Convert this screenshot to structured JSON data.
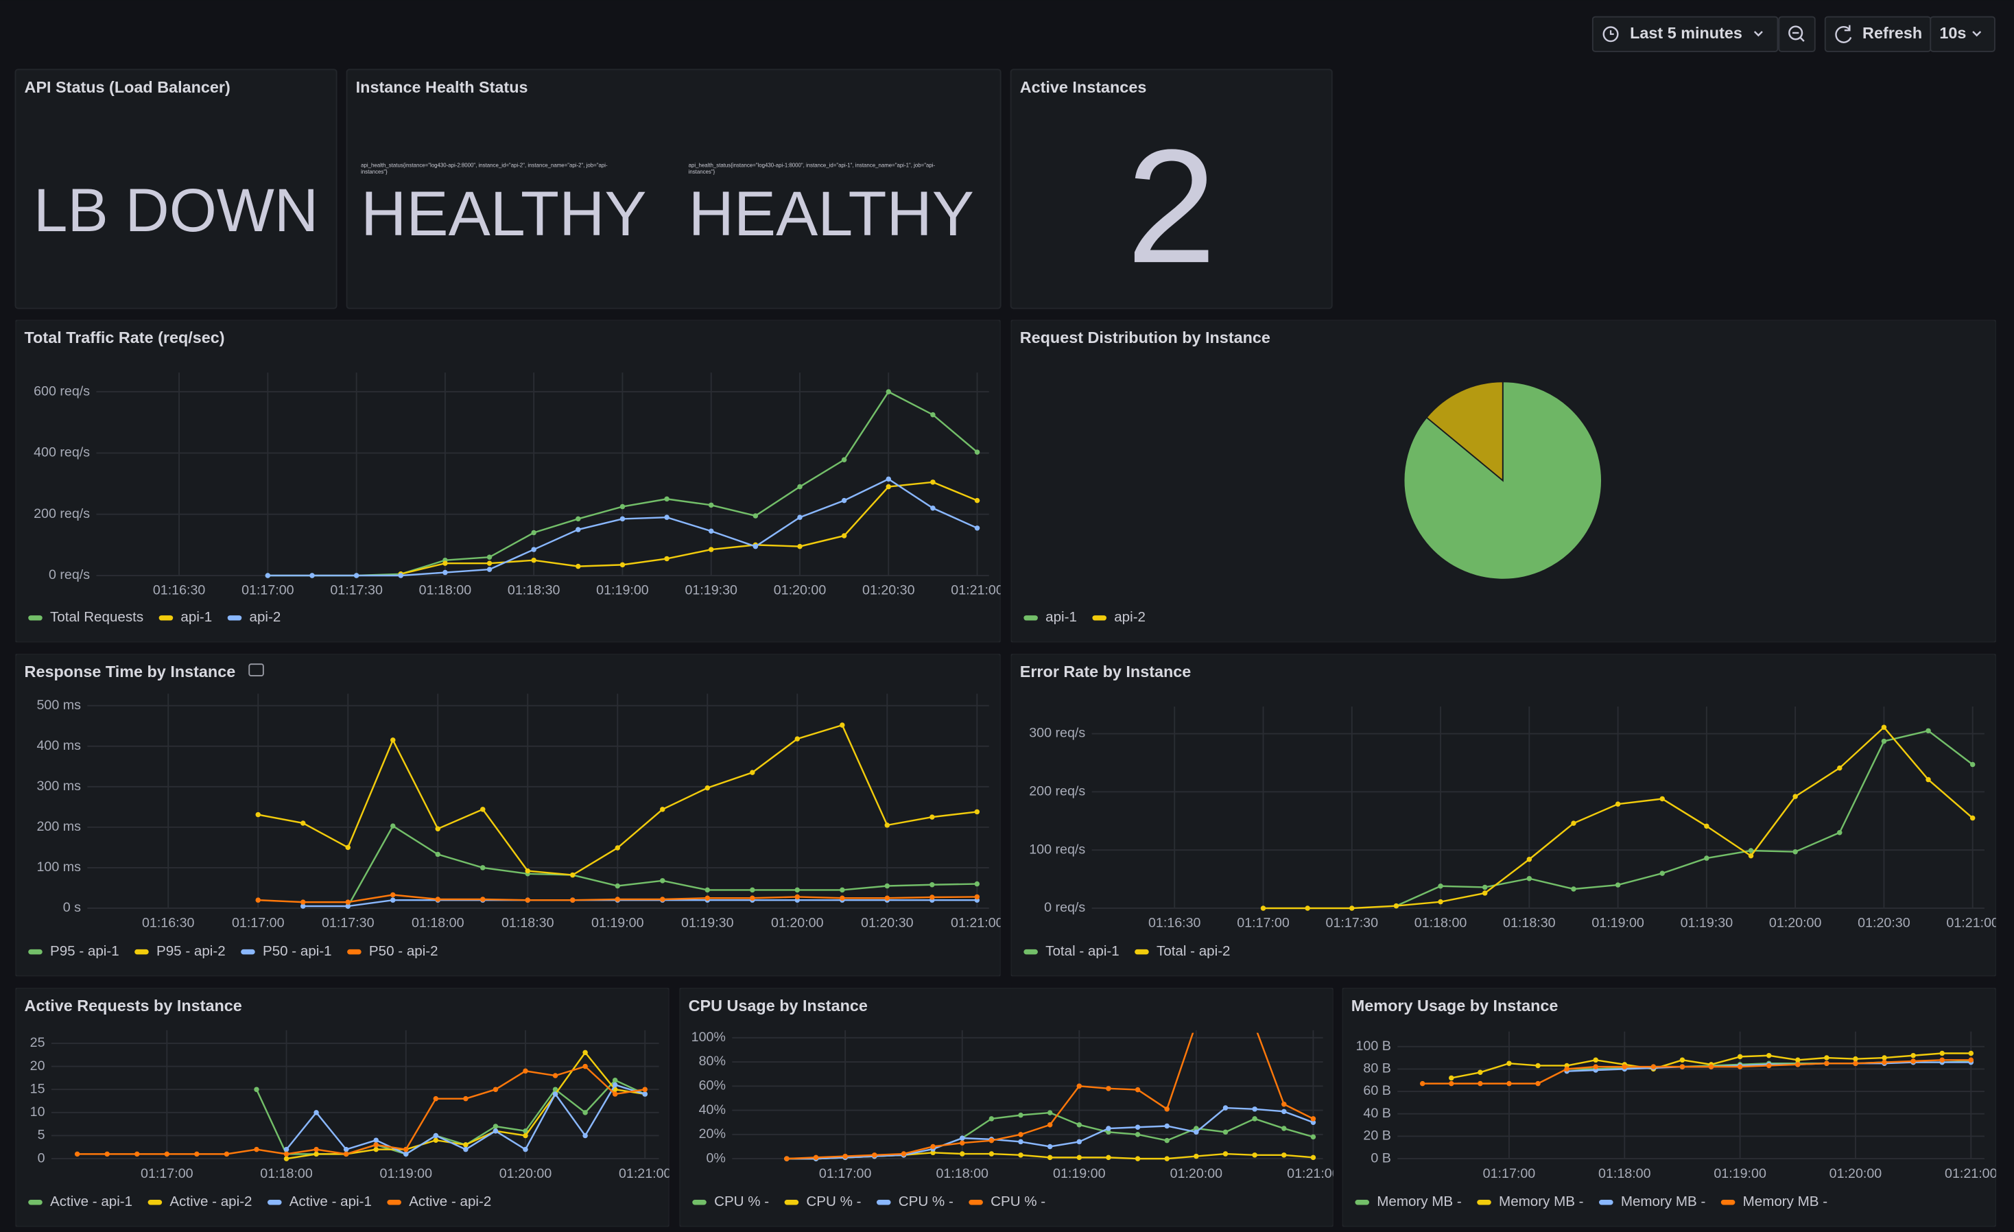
{
  "toolbar": {
    "time_range": "Last 5 minutes",
    "refresh": "Refresh",
    "interval": "10s"
  },
  "status_panel": {
    "title": "API Status (Load Balancer)",
    "value": "LB DOWN",
    "color": "#e0575f"
  },
  "health_panel": {
    "title": "Instance Health Status",
    "color": "#73bf69",
    "items": [
      {
        "label_lines": [
          "api_health_status{instance=\"log430-api-2:8000\", instance_id=\"api-2\", instance_name=\"api-2\", job=\"api-",
          "instances\"}"
        ],
        "value": "HEALTHY"
      },
      {
        "label_lines": [
          "api_health_status{instance=\"log430-api-1:8000\", instance_id=\"api-1\", instance_name=\"api-1\", job=\"api-",
          "instances\"}"
        ],
        "value": "HEALTHY"
      }
    ]
  },
  "instances_panel": {
    "title": "Active Instances",
    "value": 2,
    "color": "#73bf69"
  },
  "chart_data": [
    {
      "type": "line",
      "title": "Total Traffic Rate (req/sec)",
      "x": [
        "01:17:00",
        "01:17:15",
        "01:17:30",
        "01:17:45",
        "01:18:00",
        "01:18:15",
        "01:18:30",
        "01:18:45",
        "01:19:00",
        "01:19:15",
        "01:19:30",
        "01:19:45",
        "01:20:00",
        "01:20:15",
        "01:20:30",
        "01:20:45",
        "01:21:00"
      ],
      "xlim": [
        "01:16:02",
        "01:21:04"
      ],
      "xticks": [
        "01:16:30",
        "01:17:00",
        "01:17:30",
        "01:18:00",
        "01:18:30",
        "01:19:00",
        "01:19:30",
        "01:20:00",
        "01:20:30",
        "01:21:00"
      ],
      "ylim": [
        0,
        650
      ],
      "yticks": [
        {
          "value": 0,
          "label": "0 req/s"
        },
        {
          "value": 200,
          "label": "200 req/s"
        },
        {
          "value": 400,
          "label": "400 req/s"
        },
        {
          "value": 600,
          "label": "600 req/s"
        }
      ],
      "grid": true,
      "series": [
        {
          "name": "Total Requests",
          "color": "#73bf69",
          "values": [
            0,
            0,
            0,
            5,
            50,
            60,
            140,
            185,
            225,
            250,
            230,
            195,
            290,
            378,
            600,
            525,
            403
          ]
        },
        {
          "name": "api-1",
          "color": "#f2cc0c",
          "values": [
            null,
            null,
            null,
            5,
            40,
            40,
            50,
            30,
            35,
            55,
            85,
            100,
            95,
            130,
            290,
            305,
            245
          ]
        },
        {
          "name": "api-2",
          "color": "#8ab8ff",
          "values": [
            0,
            0,
            0,
            0,
            10,
            20,
            85,
            150,
            185,
            190,
            145,
            95,
            190,
            245,
            315,
            220,
            155
          ]
        }
      ]
    },
    {
      "type": "pie",
      "title": "Request Distribution by Instance",
      "categories": [
        "api-1",
        "api-2"
      ],
      "values": [
        86,
        14
      ],
      "colors": [
        "#73bf69",
        "#f2cc0c"
      ]
    },
    {
      "type": "line",
      "title": "Response Time by Instance",
      "x": [
        "01:17:00",
        "01:17:15",
        "01:17:30",
        "01:17:45",
        "01:18:00",
        "01:18:15",
        "01:18:30",
        "01:18:45",
        "01:19:00",
        "01:19:15",
        "01:19:30",
        "01:19:45",
        "01:20:00",
        "01:20:15",
        "01:20:30",
        "01:20:45",
        "01:21:00"
      ],
      "xlim": [
        "01:16:03",
        "01:21:04"
      ],
      "xticks": [
        "01:16:30",
        "01:17:00",
        "01:17:30",
        "01:18:00",
        "01:18:30",
        "01:19:00",
        "01:19:30",
        "01:20:00",
        "01:20:30",
        "01:21:00"
      ],
      "ylim": [
        0,
        520
      ],
      "yticks": [
        {
          "value": 0,
          "label": "0 s"
        },
        {
          "value": 100,
          "label": "100 ms"
        },
        {
          "value": 200,
          "label": "200 ms"
        },
        {
          "value": 300,
          "label": "300 ms"
        },
        {
          "value": 400,
          "label": "400 ms"
        },
        {
          "value": 500,
          "label": "500 ms"
        }
      ],
      "grid": true,
      "series": [
        {
          "name": "P95 - api-1",
          "color": "#73bf69",
          "values": [
            null,
            null,
            5,
            203,
            133,
            100,
            85,
            82,
            55,
            68,
            45,
            45,
            45,
            45,
            55,
            58,
            60
          ]
        },
        {
          "name": "P95 - api-2",
          "color": "#f2cc0c",
          "values": [
            231,
            210,
            150,
            415,
            196,
            244,
            92,
            82,
            149,
            244,
            297,
            335,
            418,
            452,
            205,
            225,
            238
          ]
        },
        {
          "name": "P50 - api-1",
          "color": "#8ab8ff",
          "values": [
            null,
            5,
            5,
            20,
            20,
            20,
            20,
            20,
            20,
            20,
            20,
            20,
            20,
            20,
            20,
            20,
            20
          ]
        },
        {
          "name": "P50 - api-2",
          "color": "#ff780a",
          "values": [
            20,
            15,
            15,
            33,
            22,
            22,
            20,
            20,
            22,
            22,
            25,
            25,
            28,
            25,
            25,
            27,
            28
          ]
        }
      ]
    },
    {
      "type": "line",
      "title": "Error Rate by Instance",
      "x": [
        "01:17:00",
        "01:17:15",
        "01:17:30",
        "01:17:45",
        "01:18:00",
        "01:18:15",
        "01:18:30",
        "01:18:45",
        "01:19:00",
        "01:19:15",
        "01:19:30",
        "01:19:45",
        "01:20:00",
        "01:20:15",
        "01:20:30",
        "01:20:45",
        "01:21:00"
      ],
      "xlim": [
        "01:16:02",
        "01:21:04"
      ],
      "xticks": [
        "01:16:30",
        "01:17:00",
        "01:17:30",
        "01:18:00",
        "01:18:30",
        "01:19:00",
        "01:19:30",
        "01:20:00",
        "01:20:30",
        "01:21:00"
      ],
      "ylim": [
        0,
        340
      ],
      "yticks": [
        {
          "value": 0,
          "label": "0 req/s"
        },
        {
          "value": 100,
          "label": "100 req/s"
        },
        {
          "value": 200,
          "label": "200 req/s"
        },
        {
          "value": 300,
          "label": "300 req/s"
        }
      ],
      "grid": true,
      "series": [
        {
          "name": "Total - api-1",
          "color": "#73bf69",
          "values": [
            null,
            null,
            null,
            4,
            38,
            36,
            51,
            33,
            40,
            60,
            86,
            99,
            97,
            130,
            287,
            305,
            247
          ]
        },
        {
          "name": "Total - api-2",
          "color": "#f2cc0c",
          "values": [
            0,
            0,
            0,
            4,
            11,
            26,
            84,
            146,
            179,
            188,
            141,
            90,
            192,
            241,
            311,
            221,
            155
          ]
        }
      ]
    },
    {
      "type": "line",
      "title": "Active Requests by Instance",
      "x": [
        "01:16:15",
        "01:16:30",
        "01:16:45",
        "01:17:00",
        "01:17:15",
        "01:17:30",
        "01:17:45",
        "01:18:00",
        "01:18:15",
        "01:18:30",
        "01:18:45",
        "01:19:00",
        "01:19:15",
        "01:19:30",
        "01:19:45",
        "01:20:00",
        "01:20:15",
        "01:20:30",
        "01:20:45",
        "01:21:00"
      ],
      "xlim": [
        "01:16:02",
        "01:21:07"
      ],
      "xticks": [
        "01:17:00",
        "01:18:00",
        "01:19:00",
        "01:20:00",
        "01:21:00"
      ],
      "ylim": [
        0,
        27
      ],
      "yticks": [
        0,
        5,
        10,
        15,
        20,
        25
      ],
      "grid": true,
      "series": [
        {
          "name": "Active - api-1",
          "color": "#73bf69",
          "values": [
            null,
            null,
            null,
            null,
            null,
            null,
            15,
            1,
            1,
            1,
            3,
            1,
            5,
            3,
            7,
            6,
            15,
            10,
            17,
            14
          ]
        },
        {
          "name": "Active - api-2",
          "color": "#f2cc0c",
          "values": [
            null,
            null,
            null,
            null,
            null,
            null,
            null,
            0,
            1,
            1,
            2,
            2,
            4,
            3,
            6,
            5,
            14,
            23,
            15,
            14
          ]
        },
        {
          "name": "Active - api-1",
          "color": "#8ab8ff",
          "values": [
            null,
            null,
            null,
            null,
            null,
            null,
            null,
            2,
            10,
            2,
            4,
            1,
            5,
            2,
            6,
            2,
            14,
            5,
            16,
            14
          ]
        },
        {
          "name": "Active - api-2",
          "color": "#ff780a",
          "values": [
            1,
            1,
            1,
            1,
            1,
            1,
            2,
            1,
            2,
            1,
            3,
            2,
            13,
            13,
            15,
            19,
            18,
            20,
            14,
            15
          ]
        }
      ]
    },
    {
      "type": "line",
      "title": "CPU Usage by Instance",
      "x": [
        "01:16:30",
        "01:16:45",
        "01:17:00",
        "01:17:15",
        "01:17:30",
        "01:17:45",
        "01:18:00",
        "01:18:15",
        "01:18:30",
        "01:18:45",
        "01:19:00",
        "01:19:15",
        "01:19:30",
        "01:19:45",
        "01:20:00",
        "01:20:15",
        "01:20:30",
        "01:20:45",
        "01:21:00"
      ],
      "xlim": [
        "01:16:02",
        "01:21:05"
      ],
      "xticks": [
        "01:17:00",
        "01:18:00",
        "01:19:00",
        "01:20:00",
        "01:21:00"
      ],
      "ylim": [
        0,
        103
      ],
      "yticks": [
        {
          "value": 0,
          "label": "0%"
        },
        {
          "value": 20,
          "label": "20%"
        },
        {
          "value": 40,
          "label": "40%"
        },
        {
          "value": 60,
          "label": "60%"
        },
        {
          "value": 80,
          "label": "80%"
        },
        {
          "value": 100,
          "label": "100%"
        }
      ],
      "grid": true,
      "series": [
        {
          "name": "CPU % -",
          "color": "#73bf69",
          "values": [
            0,
            0,
            1,
            2,
            3,
            8,
            17,
            33,
            36,
            38,
            28,
            22,
            20,
            15,
            25,
            22,
            33,
            25,
            18
          ]
        },
        {
          "name": "CPU % -",
          "color": "#f2cc0c",
          "values": [
            0,
            0,
            1,
            2,
            3,
            5,
            4,
            4,
            3,
            1,
            1,
            1,
            0,
            0,
            2,
            4,
            3,
            3,
            1
          ]
        },
        {
          "name": "CPU % -",
          "color": "#8ab8ff",
          "values": [
            0,
            0,
            1,
            2,
            3,
            8,
            17,
            16,
            14,
            10,
            14,
            25,
            26,
            27,
            22,
            42,
            41,
            39,
            30
          ]
        },
        {
          "name": "CPU % -",
          "color": "#ff780a",
          "values": [
            0,
            1,
            2,
            3,
            4,
            10,
            13,
            15,
            20,
            28,
            60,
            58,
            57,
            41,
            112,
            130,
            110,
            45,
            33
          ]
        }
      ]
    },
    {
      "type": "line",
      "title": "Memory Usage by Instance",
      "x": [
        "01:16:15",
        "01:16:30",
        "01:16:45",
        "01:17:00",
        "01:17:15",
        "01:17:30",
        "01:17:45",
        "01:18:00",
        "01:18:15",
        "01:18:30",
        "01:18:45",
        "01:19:00",
        "01:19:15",
        "01:19:30",
        "01:19:45",
        "01:20:00",
        "01:20:15",
        "01:20:30",
        "01:20:45",
        "01:21:00"
      ],
      "xlim": [
        "01:16:02",
        "01:21:07"
      ],
      "xticks": [
        "01:17:00",
        "01:18:00",
        "01:19:00",
        "01:20:00",
        "01:21:00"
      ],
      "ylim": [
        0,
        110
      ],
      "yticks": [
        {
          "value": 0,
          "label": "0 B"
        },
        {
          "value": 20,
          "label": "20 B"
        },
        {
          "value": 40,
          "label": "40 B"
        },
        {
          "value": 60,
          "label": "60 B"
        },
        {
          "value": 80,
          "label": "80 B"
        },
        {
          "value": 100,
          "label": "100 B"
        }
      ],
      "grid": true,
      "series": [
        {
          "name": "Memory MB -",
          "color": "#73bf69",
          "values": [
            null,
            null,
            null,
            null,
            null,
            80,
            80,
            81,
            82,
            82,
            83,
            84,
            85,
            85,
            85,
            85,
            86,
            86,
            86,
            87
          ]
        },
        {
          "name": "Memory MB -",
          "color": "#f2cc0c",
          "values": [
            null,
            72,
            77,
            85,
            83,
            83,
            88,
            84,
            80,
            88,
            84,
            91,
            92,
            88,
            90,
            89,
            90,
            92,
            94,
            94
          ]
        },
        {
          "name": "Memory MB -",
          "color": "#8ab8ff",
          "values": [
            null,
            null,
            null,
            null,
            null,
            78,
            79,
            80,
            81,
            82,
            82,
            83,
            84,
            84,
            85,
            85,
            85,
            86,
            86,
            86
          ]
        },
        {
          "name": "Memory MB -",
          "color": "#ff780a",
          "values": [
            67,
            67,
            67,
            67,
            67,
            80,
            82,
            82,
            82,
            82,
            82,
            82,
            83,
            84,
            85,
            85,
            86,
            87,
            88,
            88
          ]
        }
      ]
    }
  ]
}
